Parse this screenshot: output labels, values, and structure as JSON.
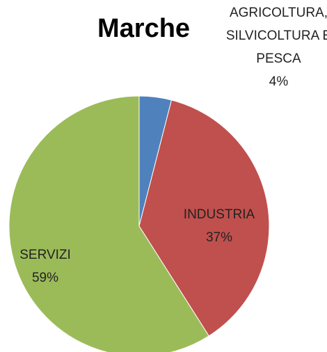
{
  "chart_data": {
    "type": "pie",
    "title": "Marche",
    "categories": [
      "AGRICOLTURA, SILVICOLTURA E PESCA",
      "INDUSTRIA",
      "SERVIZI"
    ],
    "values": [
      4,
      37,
      59
    ],
    "value_labels": [
      "4%",
      "37%",
      "59%"
    ],
    "colors": [
      "#4f81bd",
      "#c0504d",
      "#9bbb59"
    ]
  }
}
